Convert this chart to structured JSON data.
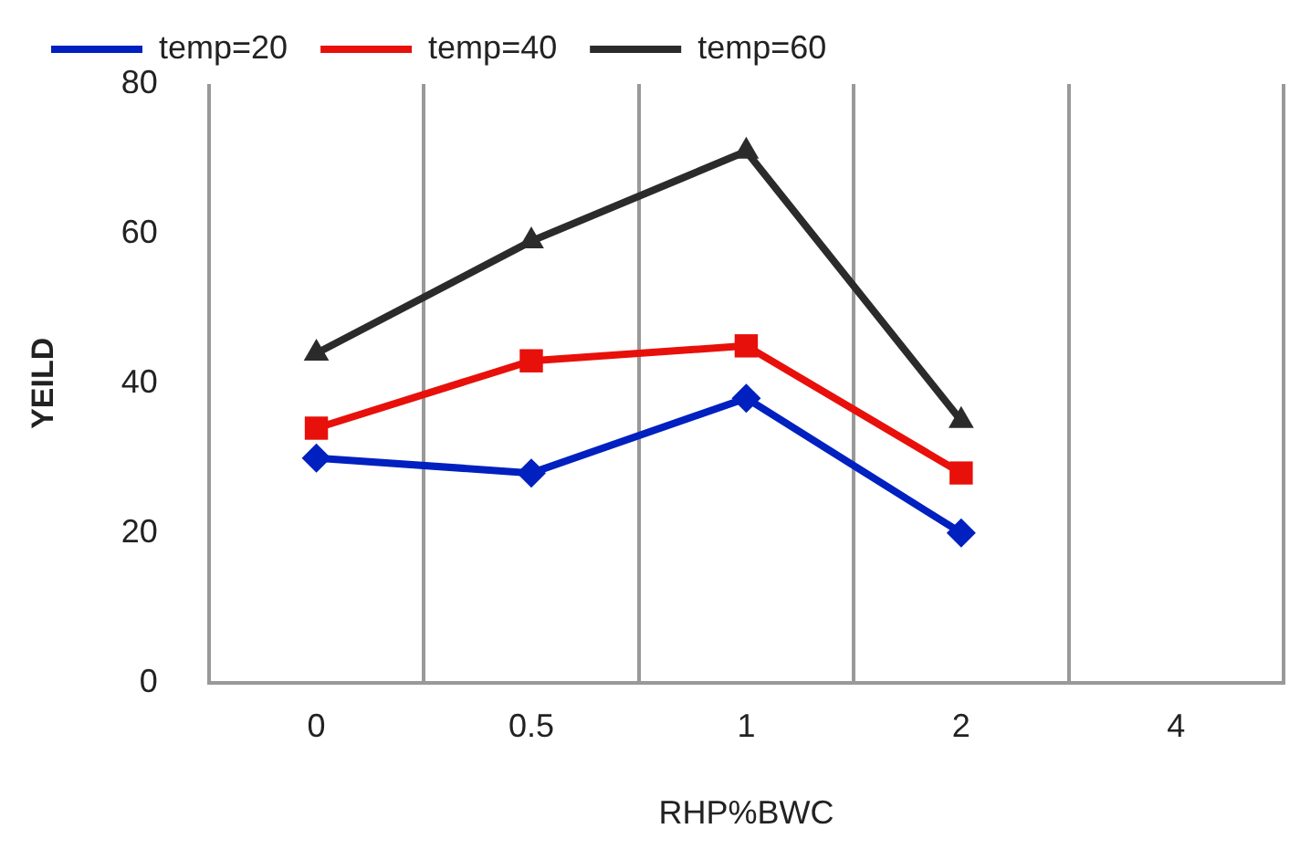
{
  "chart_data": {
    "type": "line",
    "xlabel": "RHP%BWC",
    "ylabel": "YEILD",
    "categories": [
      "0",
      "0.5",
      "1",
      "2",
      "4"
    ],
    "series": [
      {
        "name": "temp=20",
        "color": "#0020c0",
        "marker": "diamond",
        "values": [
          30,
          28,
          38,
          20,
          null
        ]
      },
      {
        "name": "temp=40",
        "color": "#e8100a",
        "marker": "square",
        "values": [
          34,
          43,
          45,
          28,
          null
        ]
      },
      {
        "name": "temp=60",
        "color": "#2b2b2b",
        "marker": "triangle",
        "values": [
          44,
          59,
          71,
          35,
          null
        ]
      }
    ],
    "ylim": [
      0,
      80
    ],
    "yticks": [
      0,
      20,
      40,
      60,
      80
    ],
    "grid": "x",
    "legend": "top",
    "line_style": "solid"
  }
}
